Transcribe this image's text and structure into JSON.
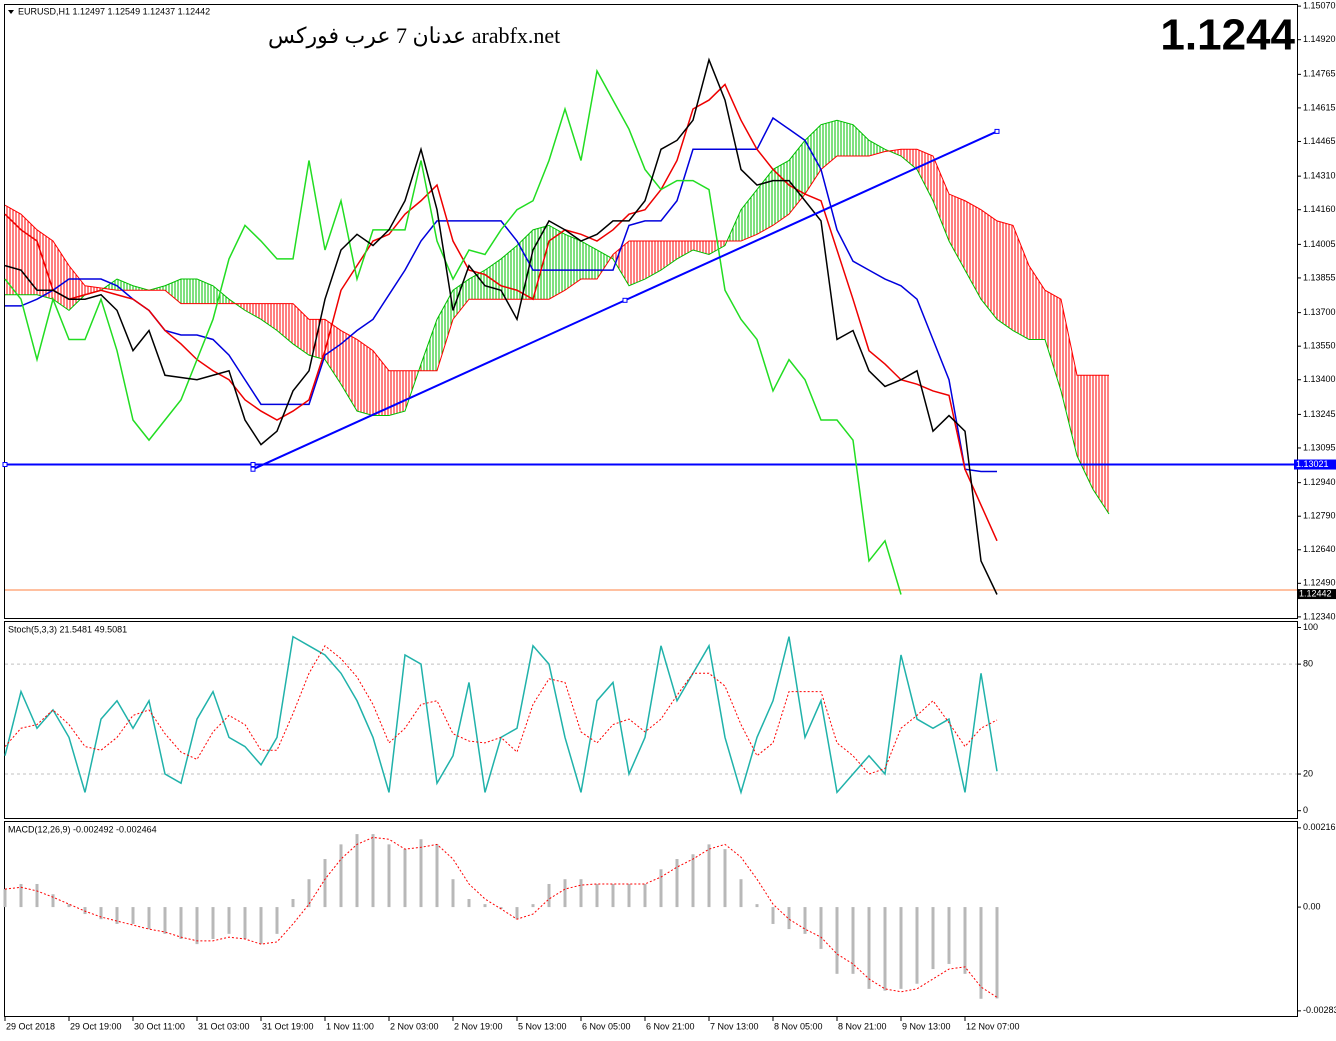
{
  "chart_data": [
    {
      "type": "line",
      "title": "EURUSD,H1  1.12497 1.12549 1.12437 1.12442",
      "annotation": "عدنان 7 عرب فوركس arabfx.net",
      "price_label": "1.1244",
      "categories": [
        "29 Oct 2018",
        null,
        null,
        null,
        "29 Oct 19:00",
        null,
        null,
        null,
        "30 Oct 11:00",
        null,
        null,
        null,
        "31 Oct 03:00",
        null,
        null,
        null,
        "31 Oct 19:00",
        null,
        null,
        null,
        "1 Nov 11:00",
        null,
        null,
        null,
        "2 Nov 03:00",
        null,
        null,
        null,
        "2 Nov 19:00",
        null,
        null,
        null,
        "5 Nov 13:00",
        null,
        null,
        null,
        "6 Nov 05:00",
        null,
        null,
        null,
        "6 Nov 21:00",
        null,
        null,
        null,
        "7 Nov 13:00",
        null,
        null,
        null,
        "8 Nov 05:00",
        null,
        null,
        null,
        "8 Nov 21:00",
        null,
        null,
        null,
        "9 Nov 13:00",
        null,
        null,
        null,
        "12 Nov 07:00",
        null,
        null,
        null,
        null,
        null,
        null,
        null,
        null,
        null
      ],
      "ylim": [
        1.12335,
        1.15075
      ],
      "yticks": [
        {
          "value": 1.1507,
          "label": "1.15070"
        },
        {
          "value": 1.1492,
          "label": "1.14920"
        },
        1.14765,
        1.14615,
        1.14465,
        {
          "value": 1.1431,
          "label": "1.14310"
        },
        {
          "value": 1.1416,
          "label": "1.14160"
        },
        1.14005,
        1.13855,
        {
          "value": 1.137,
          "label": "1.13700"
        },
        {
          "value": 1.1355,
          "label": "1.13550"
        },
        {
          "value": 1.134,
          "label": "1.13400"
        },
        1.13245,
        1.13095,
        {
          "value": 1.1294,
          "label": "1.12940"
        },
        {
          "value": 1.1279,
          "label": "1.12790"
        },
        {
          "value": 1.1264,
          "label": "1.12640"
        },
        {
          "value": 1.1249,
          "label": "1.12490"
        },
        {
          "value": 1.1234,
          "label": "1.12340"
        }
      ],
      "cloud": {
        "up_color": "#00c000",
        "down_color": "#ff0000",
        "span_a": [
          1.1378,
          1.1378,
          1.1378,
          1.1376,
          1.1371,
          1.1378,
          1.138,
          1.1385,
          1.1382,
          1.138,
          1.1382,
          1.1385,
          1.1385,
          1.1382,
          1.1376,
          1.1371,
          1.1367,
          1.1362,
          1.1356,
          1.1351,
          1.1349,
          1.1338,
          1.1326,
          1.1324,
          1.1324,
          1.1326,
          1.1347,
          1.1367,
          1.138,
          1.1385,
          1.1389,
          1.1394,
          1.14,
          1.1407,
          1.1409,
          1.1405,
          1.1402,
          1.1398,
          1.1394,
          1.1382,
          1.1385,
          1.1389,
          1.1394,
          1.1398,
          1.1396,
          1.14,
          1.1416,
          1.1425,
          1.1434,
          1.1438,
          1.1447,
          1.1454,
          1.1456,
          1.1454,
          1.1447,
          1.1443,
          1.144,
          1.1434,
          1.142,
          1.1402,
          1.1389,
          1.1376,
          1.1367,
          1.1362,
          1.1358,
          1.1358,
          1.1335,
          1.1306,
          1.1291,
          1.128
        ],
        "span_b": [
          1.1418,
          1.1414,
          1.1407,
          1.1402,
          1.1391,
          1.1382,
          1.1381,
          1.138,
          1.138,
          1.138,
          1.138,
          1.1374,
          1.1374,
          1.1374,
          1.1374,
          1.1374,
          1.1374,
          1.1374,
          1.1374,
          1.1367,
          1.1367,
          1.1362,
          1.1358,
          1.1353,
          1.1344,
          1.1344,
          1.1344,
          1.1344,
          1.1367,
          1.1376,
          1.1376,
          1.1376,
          1.1376,
          1.1376,
          1.1376,
          1.138,
          1.1385,
          1.1385,
          1.1396,
          1.1402,
          1.1402,
          1.1402,
          1.1402,
          1.1402,
          1.1402,
          1.1402,
          1.1402,
          1.1405,
          1.1409,
          1.1414,
          1.1423,
          1.1434,
          1.144,
          1.144,
          1.144,
          1.1442,
          1.1443,
          1.1443,
          1.144,
          1.1423,
          1.142,
          1.1416,
          1.1411,
          1.1409,
          1.1391,
          1.138,
          1.1376,
          1.1342,
          1.1342,
          1.1342
        ]
      },
      "hlines": [
        {
          "value": 1.13021,
          "color": "#0000ff",
          "boxed": true
        },
        {
          "value": 1.1246,
          "color": "#ff8040"
        }
      ],
      "last_price": 1.12442,
      "trend_line": {
        "x": [
          15.5,
          62
        ],
        "values": [
          1.13,
          1.1451
        ],
        "color": "#0000ff"
      },
      "series": [
        {
          "color": "#0000dd",
          "style": "line",
          "values": [
            1.1373,
            1.1373,
            1.1376,
            1.138,
            1.1385,
            1.1385,
            1.1385,
            1.1382,
            1.1376,
            1.1371,
            1.1362,
            1.136,
            1.136,
            1.1358,
            1.1351,
            1.134,
            1.1329,
            1.1329,
            1.1329,
            1.1329,
            1.1351,
            1.1356,
            1.1362,
            1.1367,
            1.1378,
            1.1389,
            1.1402,
            1.1411,
            1.1411,
            1.1411,
            1.1411,
            1.1411,
            1.1402,
            1.1389,
            1.1389,
            1.1389,
            1.1389,
            1.1389,
            1.1389,
            1.1409,
            1.1411,
            1.1411,
            1.142,
            1.1443,
            1.1443,
            1.1443,
            1.1443,
            1.1443,
            1.1457,
            1.1452,
            1.1447,
            1.1434,
            1.1407,
            1.1393,
            1.1389,
            1.1385,
            1.1382,
            1.1376,
            1.1358,
            1.134,
            1.13,
            1.1299,
            1.1299,
            null,
            null,
            null,
            null,
            null,
            null,
            null
          ]
        },
        {
          "color": "#ee0000",
          "style": "line",
          "values": [
            1.1414,
            1.1407,
            1.1402,
            1.138,
            1.1376,
            1.1378,
            1.138,
            1.1378,
            1.1376,
            1.1371,
            1.1362,
            1.1356,
            1.1349,
            1.1344,
            1.134,
            1.1331,
            1.1326,
            1.1322,
            1.1326,
            1.1331,
            1.1353,
            1.138,
            1.1391,
            1.1402,
            1.1405,
            1.1414,
            1.142,
            1.1427,
            1.1402,
            1.1389,
            1.1387,
            1.1382,
            1.138,
            1.1376,
            1.1402,
            1.1407,
            1.1405,
            1.1402,
            1.1407,
            1.1414,
            1.1416,
            1.1425,
            1.1438,
            1.1461,
            1.1465,
            1.1472,
            1.1456,
            1.1443,
            1.1434,
            1.1427,
            1.1423,
            1.142,
            1.1398,
            1.1376,
            1.1353,
            1.1347,
            1.134,
            1.1338,
            1.1335,
            1.1333,
            1.13,
            1.1284,
            1.1268,
            null,
            null,
            null,
            null,
            null,
            null,
            null
          ]
        },
        {
          "color": "#22dd22",
          "style": "line",
          "values": [
            1.1385,
            1.1376,
            1.1349,
            1.1376,
            1.1358,
            1.1358,
            1.1376,
            1.1353,
            1.1322,
            1.1313,
            1.1322,
            1.1331,
            1.1349,
            1.1367,
            1.1394,
            1.1409,
            1.1402,
            1.1394,
            1.1394,
            1.1438,
            1.1398,
            1.142,
            1.1385,
            1.1407,
            1.1407,
            1.1407,
            1.1438,
            1.1402,
            1.1385,
            1.1398,
            1.1396,
            1.1407,
            1.1416,
            1.142,
            1.1438,
            1.1461,
            1.1438,
            1.1478,
            1.1465,
            1.1452,
            1.1434,
            1.1425,
            1.1429,
            1.1429,
            1.1425,
            1.138,
            1.1367,
            1.1358,
            1.1335,
            1.1349,
            1.134,
            1.1322,
            1.1322,
            1.1313,
            1.1259,
            1.1268,
            1.1244,
            null,
            null,
            null,
            null,
            null,
            null,
            null,
            null,
            null,
            null,
            null,
            null,
            null
          ]
        },
        {
          "color": "#000000",
          "style": "line",
          "values": [
            1.1391,
            1.1389,
            1.138,
            1.138,
            1.1376,
            1.1376,
            1.1378,
            1.1371,
            1.1353,
            1.1362,
            1.1342,
            1.1341,
            1.134,
            1.1342,
            1.1344,
            1.1322,
            1.1311,
            1.1317,
            1.1335,
            1.1344,
            1.1376,
            1.1398,
            1.1405,
            1.14,
            1.1407,
            1.142,
            1.1443,
            1.1416,
            1.1371,
            1.1391,
            1.1382,
            1.138,
            1.1367,
            1.1398,
            1.1411,
            1.1407,
            1.1402,
            1.1405,
            1.1411,
            1.1411,
            1.142,
            1.1443,
            1.1447,
            1.1456,
            1.1483,
            1.1465,
            1.1434,
            1.1427,
            1.1429,
            1.1429,
            1.142,
            1.1411,
            1.1358,
            1.1362,
            1.1344,
            1.1337,
            1.134,
            1.1344,
            1.1317,
            1.1324,
            1.1317,
            1.1259,
            1.1244,
            null,
            null,
            null,
            null,
            null,
            null,
            null
          ]
        }
      ]
    },
    {
      "type": "line",
      "title": "Stoch(5,3,3) 21.5481 49.5081",
      "ylim": [
        -4,
        103
      ],
      "yticks": [
        100,
        80,
        20,
        0
      ],
      "levels": [
        80,
        20
      ],
      "level_color": "#c0c0c0",
      "series": [
        {
          "color": "#20b2aa",
          "style": "line",
          "values": [
            30,
            65,
            45,
            55,
            40,
            10,
            50,
            60,
            45,
            60,
            20,
            15,
            50,
            65,
            40,
            35,
            25,
            40,
            95,
            90,
            85,
            75,
            60,
            40,
            10,
            85,
            80,
            15,
            30,
            70,
            10,
            40,
            45,
            90,
            80,
            40,
            10,
            60,
            70,
            20,
            40,
            90,
            60,
            75,
            90,
            40,
            10,
            40,
            60,
            95,
            40,
            60,
            10,
            20,
            30,
            20,
            85,
            50,
            45,
            50,
            10,
            75,
            21.5
          ]
        },
        {
          "color": "#ff0000",
          "style": "dotted",
          "values": [
            35,
            45,
            47,
            55,
            47,
            35,
            33,
            40,
            52,
            55,
            42,
            32,
            28,
            43,
            52,
            47,
            33,
            33,
            53,
            75,
            90,
            83,
            73,
            58,
            37,
            45,
            58,
            60,
            42,
            38,
            37,
            40,
            32,
            58,
            72,
            70,
            43,
            37,
            47,
            50,
            43,
            50,
            63,
            75,
            75,
            68,
            47,
            30,
            37,
            65,
            65,
            65,
            37,
            30,
            20,
            23,
            45,
            52,
            60,
            48,
            35,
            45,
            49.5
          ]
        }
      ]
    },
    {
      "type": "bar",
      "title": "MACD(12,26,9) -0.002492 -0.002464",
      "ylim": [
        -0.00297,
        0.00232
      ],
      "yticks": [
        0.00216,
        {
          "value": 0,
          "label": "0.00"
        },
        -0.00283
      ],
      "series": [
        {
          "color": "#b8b8b8",
          "style": "bar",
          "values": [
            0.00049,
            0.00063,
            0.00063,
            0.00035,
            8e-05,
            -0.00019,
            -0.00033,
            -0.00046,
            -0.00046,
            -0.0006,
            -0.00073,
            -0.00087,
            -0.00101,
            -0.00087,
            -0.00073,
            -0.00087,
            -0.00101,
            -0.00073,
            0.00022,
            0.00076,
            0.00131,
            0.00171,
            0.00199,
            0.00199,
            0.00171,
            0.00158,
            0.00185,
            0.00171,
            0.00076,
            0.00022,
            8e-05,
            -5e-05,
            -0.00033,
            8e-05,
            0.00063,
            0.00076,
            0.00076,
            0.00063,
            0.00063,
            0.00063,
            0.00063,
            0.00103,
            0.00131,
            0.00144,
            0.00171,
            0.00158,
            0.00076,
            8e-05,
            -0.00046,
            -0.0006,
            -0.00073,
            -0.00114,
            -0.00182,
            -0.00182,
            -0.00223,
            -0.00228,
            -0.00223,
            -0.00209,
            -0.00169,
            -0.00155,
            -0.00182,
            -0.0025,
            -0.00249
          ]
        },
        {
          "color": "#ff0000",
          "style": "dotted",
          "values": [
            0.00049,
            0.00054,
            0.00044,
            0.00027,
            8e-05,
            -0.00011,
            -0.00027,
            -0.00038,
            -0.00049,
            -0.0006,
            -0.00068,
            -0.00082,
            -0.00092,
            -0.00092,
            -0.00082,
            -0.00087,
            -0.00101,
            -0.00095,
            -0.00046,
            8e-05,
            0.00076,
            0.00131,
            0.00171,
            0.0019,
            0.00185,
            0.00158,
            0.00163,
            0.00171,
            0.00131,
            0.00063,
            0.00022,
            -5e-05,
            -0.00033,
            -0.00019,
            0.00022,
            0.00049,
            0.0006,
            0.00063,
            0.00063,
            0.00063,
            0.00063,
            0.00082,
            0.00109,
            0.00131,
            0.00158,
            0.00171,
            0.00136,
            0.00076,
            8e-05,
            -0.00033,
            -0.0006,
            -0.00082,
            -0.00128,
            -0.00155,
            -0.00196,
            -0.00223,
            -0.00231,
            -0.00223,
            -0.00196,
            -0.00169,
            -0.00163,
            -0.00218,
            -0.00246
          ]
        }
      ]
    }
  ]
}
